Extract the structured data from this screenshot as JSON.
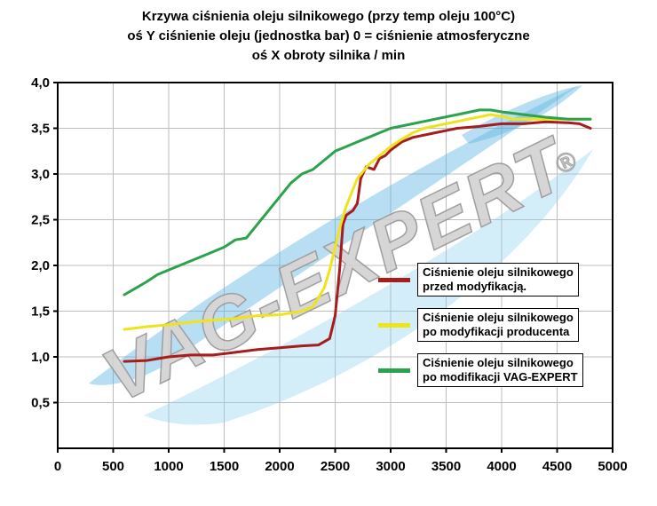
{
  "title": {
    "line1": "Krzywa ciśnienia oleju silnikowego (przy temp oleju 100°C)",
    "line2": "oś Y ciśnienie oleju (jednostka bar) 0 = ciśnienie atmosferyczne",
    "line3": "oś X obroty silnika / min"
  },
  "watermark": {
    "text": "VAG-EXPERT",
    "registered_mark": "®",
    "text_color": "#d0d0d0",
    "text_outline_color": "#8f8f8f",
    "swoosh_color": "#55b1e2",
    "swoosh_color_light": "#8ed0ef"
  },
  "legend": {
    "items": [
      {
        "line1": "Ciśnienie oleju silnikowego",
        "line2": "przed modyfikacją."
      },
      {
        "line1": "Ciśnienie oleju silnikowego",
        "line2": "po modyfikacji producenta"
      },
      {
        "line1": "Ciśnienie oleju silnikowego",
        "line2": "po modifikacji VAG-EXPERT"
      }
    ]
  },
  "chart_data": {
    "type": "line",
    "title": "Krzywa ciśnienia oleju silnikowego (przy temp oleju 100°C)",
    "xlabel": "obroty silnika / min",
    "ylabel": "ciśnienie oleju (jednostka bar), 0 = ciśnienie atmosferyczne",
    "xlim": [
      0,
      5000
    ],
    "ylim": [
      0,
      4.0
    ],
    "grid": true,
    "grid_color": "#bdbdbd",
    "legend_position": "center-right",
    "x_ticks": [
      0,
      500,
      1000,
      1500,
      2000,
      2500,
      3000,
      3500,
      4000,
      4500,
      5000
    ],
    "x_tick_labels": [
      "0",
      "500",
      "1000",
      "1500",
      "2000",
      "2500",
      "3000",
      "3500",
      "4000",
      "4500",
      "5000"
    ],
    "y_ticks": [
      0.5,
      1.0,
      1.5,
      2.0,
      2.5,
      3.0,
      3.5,
      4.0
    ],
    "y_tick_labels": [
      "0,5",
      "1,0",
      "1,5",
      "2,0",
      "2,5",
      "3,0",
      "3,5",
      "4,0"
    ],
    "series": [
      {
        "name": "Ciśnienie oleju silnikowego przed modyfikacją.",
        "color": "#a51d1d",
        "points": [
          [
            600,
            0.95
          ],
          [
            800,
            0.96
          ],
          [
            1000,
            1.0
          ],
          [
            1200,
            1.02
          ],
          [
            1400,
            1.02
          ],
          [
            1600,
            1.05
          ],
          [
            1800,
            1.08
          ],
          [
            2000,
            1.1
          ],
          [
            2200,
            1.12
          ],
          [
            2350,
            1.13
          ],
          [
            2450,
            1.2
          ],
          [
            2500,
            1.45
          ],
          [
            2540,
            1.95
          ],
          [
            2570,
            2.45
          ],
          [
            2600,
            2.55
          ],
          [
            2660,
            2.6
          ],
          [
            2700,
            2.68
          ],
          [
            2730,
            2.95
          ],
          [
            2780,
            3.08
          ],
          [
            2850,
            3.05
          ],
          [
            2900,
            3.17
          ],
          [
            2950,
            3.2
          ],
          [
            3000,
            3.26
          ],
          [
            3100,
            3.35
          ],
          [
            3200,
            3.4
          ],
          [
            3400,
            3.45
          ],
          [
            3600,
            3.5
          ],
          [
            3800,
            3.52
          ],
          [
            4000,
            3.55
          ],
          [
            4200,
            3.55
          ],
          [
            4400,
            3.57
          ],
          [
            4600,
            3.56
          ],
          [
            4700,
            3.55
          ],
          [
            4800,
            3.5
          ]
        ]
      },
      {
        "name": "Ciśnienie oleju silnikowego po modyfikacji producenta",
        "color": "#efe41c",
        "points": [
          [
            600,
            1.3
          ],
          [
            800,
            1.33
          ],
          [
            1000,
            1.35
          ],
          [
            1200,
            1.38
          ],
          [
            1400,
            1.4
          ],
          [
            1600,
            1.42
          ],
          [
            1800,
            1.45
          ],
          [
            2000,
            1.46
          ],
          [
            2200,
            1.5
          ],
          [
            2300,
            1.55
          ],
          [
            2400,
            1.75
          ],
          [
            2450,
            1.95
          ],
          [
            2500,
            2.2
          ],
          [
            2550,
            2.45
          ],
          [
            2600,
            2.65
          ],
          [
            2700,
            2.95
          ],
          [
            2800,
            3.1
          ],
          [
            2900,
            3.2
          ],
          [
            3000,
            3.3
          ],
          [
            3100,
            3.38
          ],
          [
            3200,
            3.45
          ],
          [
            3300,
            3.5
          ],
          [
            3500,
            3.55
          ],
          [
            3700,
            3.6
          ],
          [
            3900,
            3.65
          ],
          [
            4000,
            3.63
          ],
          [
            4100,
            3.6
          ],
          [
            4300,
            3.6
          ],
          [
            4500,
            3.6
          ],
          [
            4800,
            3.6
          ]
        ]
      },
      {
        "name": "Ciśnienie oleju silnikowego po modifikacji VAG-EXPERT",
        "color": "#2ca24c",
        "points": [
          [
            600,
            1.68
          ],
          [
            700,
            1.75
          ],
          [
            800,
            1.82
          ],
          [
            900,
            1.9
          ],
          [
            1000,
            1.95
          ],
          [
            1100,
            2.0
          ],
          [
            1200,
            2.05
          ],
          [
            1400,
            2.15
          ],
          [
            1500,
            2.2
          ],
          [
            1600,
            2.28
          ],
          [
            1700,
            2.3
          ],
          [
            1800,
            2.45
          ],
          [
            1900,
            2.6
          ],
          [
            2000,
            2.75
          ],
          [
            2100,
            2.9
          ],
          [
            2200,
            3.0
          ],
          [
            2300,
            3.05
          ],
          [
            2400,
            3.15
          ],
          [
            2500,
            3.25
          ],
          [
            2600,
            3.3
          ],
          [
            2700,
            3.35
          ],
          [
            2800,
            3.4
          ],
          [
            2900,
            3.45
          ],
          [
            3000,
            3.5
          ],
          [
            3200,
            3.55
          ],
          [
            3400,
            3.6
          ],
          [
            3600,
            3.65
          ],
          [
            3800,
            3.7
          ],
          [
            3900,
            3.7
          ],
          [
            4000,
            3.68
          ],
          [
            4200,
            3.65
          ],
          [
            4400,
            3.62
          ],
          [
            4600,
            3.6
          ],
          [
            4800,
            3.6
          ]
        ]
      }
    ]
  }
}
